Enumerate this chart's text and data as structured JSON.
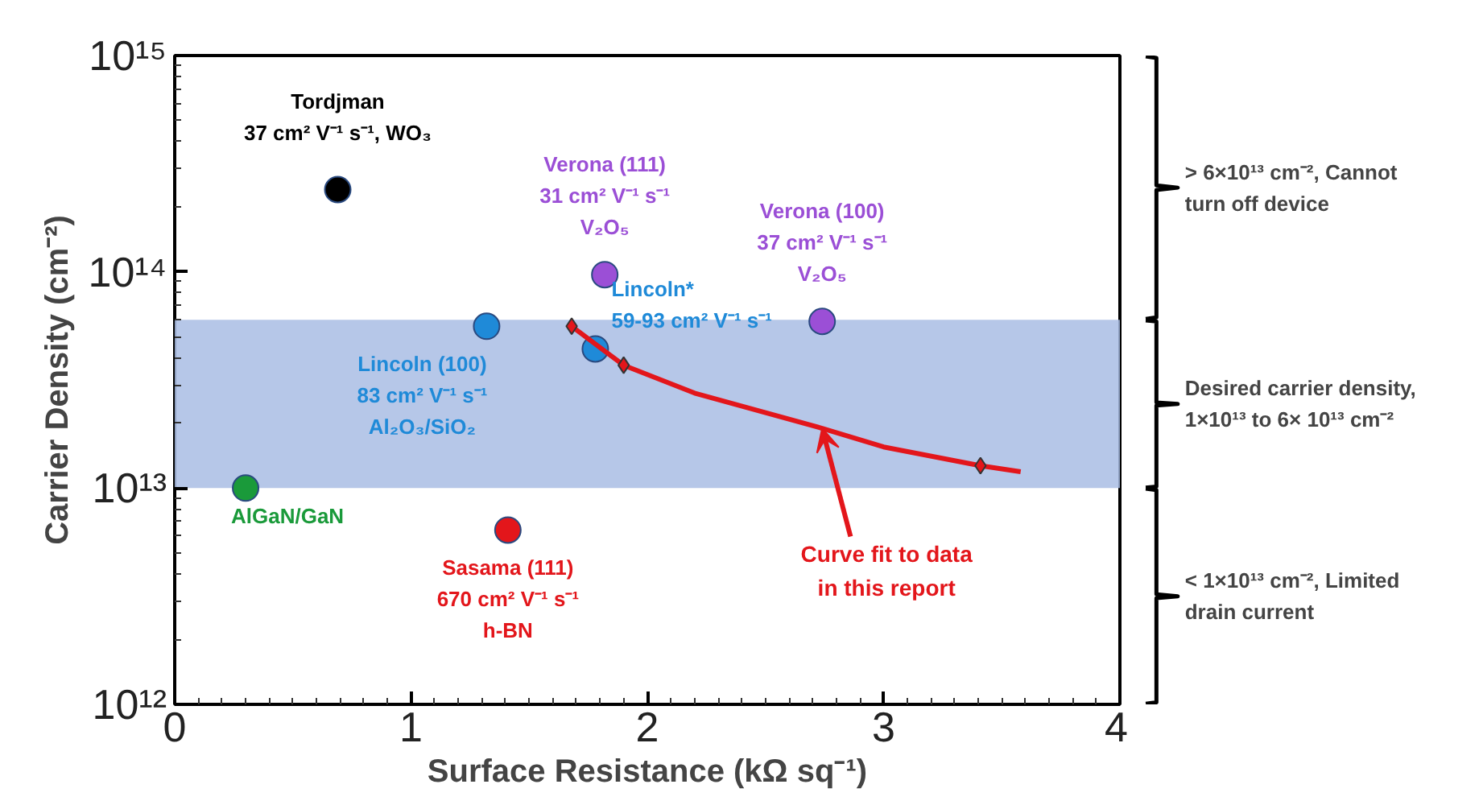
{
  "chart_data": {
    "type": "scatter",
    "xlabel": "Surface Resistance (kΩ sq⁻¹)",
    "ylabel": "Carrier Density (cm⁻²)",
    "xlim": [
      0,
      4
    ],
    "xticks": [
      0,
      1,
      2,
      3,
      4
    ],
    "log": "y",
    "ylim": [
      1000000000000.0,
      1000000000000000.0
    ],
    "yticks": [
      {
        "value": 1000000000000.0,
        "label": "10¹²"
      },
      {
        "value": 10000000000000.0,
        "label": "10¹³"
      },
      {
        "value": 100000000000000.0,
        "label": "10¹⁴"
      },
      {
        "value": 1000000000000000.0,
        "label": "10¹⁵"
      }
    ],
    "grid": false,
    "marker": "circle",
    "bands": [
      {
        "axis": "y",
        "from": 10000000000000.0,
        "to": 60000000000000.0,
        "color": "#a9bde4"
      }
    ],
    "series": [
      {
        "name": "Tordjman\n37 cm² V⁻¹ s⁻¹, WO₃",
        "color": "#000000",
        "x": [
          0.69
        ],
        "values": [
          240000000000000.0
        ]
      },
      {
        "name": "Verona (111)\n31 cm² V⁻¹ s⁻¹\nV₂O₅",
        "color": "#9b4fd6",
        "x": [
          1.82
        ],
        "values": [
          97000000000000.0
        ]
      },
      {
        "name": "Verona (100)\n37 cm² V⁻¹ s⁻¹\nV₂O₅",
        "color": "#9b4fd6",
        "x": [
          2.74
        ],
        "values": [
          59000000000000.0
        ]
      },
      {
        "name": "Lincoln (100)\n83 cm² V⁻¹ s⁻¹\nAl₂O₃/SiO₂",
        "color": "#1f8ad8",
        "x": [
          1.32
        ],
        "values": [
          56000000000000.0
        ]
      },
      {
        "name": "Lincoln*\n59-93 cm² V⁻¹ s⁻¹",
        "color": "#1f8ad8",
        "x": [
          1.78
        ],
        "values": [
          44000000000000.0
        ]
      },
      {
        "name": "AlGaN/GaN",
        "color": "#1a9a3a",
        "x": [
          0.3
        ],
        "values": [
          10000000000000.0
        ]
      },
      {
        "name": "Sasama (111)\n670 cm² V⁻¹ s⁻¹\nh-BN",
        "color": "#e3161b",
        "x": [
          1.41
        ],
        "values": [
          6400000000000.0
        ]
      },
      {
        "type": "line",
        "marker": "none",
        "color": "#e3161b",
        "x": [
          1.68,
          1.9,
          2.2,
          2.74,
          3.0,
          3.41,
          3.58
        ],
        "values": [
          56000000000000.0,
          37000000000000.0,
          27500000000000.0,
          18900000000000.0,
          15500000000000.0,
          12700000000000.0,
          11900000000000.0
        ]
      },
      {
        "marker": "diamond",
        "color": "#e3161b",
        "x": [
          1.68,
          1.9,
          3.41
        ],
        "values": [
          56000000000000.0,
          37000000000000.0,
          12700000000000.0
        ]
      }
    ],
    "annotations": [
      "> 6×10¹³ cm⁻², Cannot\nturn off device",
      "Desired carrier density,\n1×10¹³ to 6× 10¹³ cm⁻²",
      "< 1×10¹³ cm⁻²,  Limited\ndrain current",
      {
        "text": "Curve fit to data\nin this report",
        "x": 2.74,
        "y": 18900000000000.0
      }
    ]
  }
}
